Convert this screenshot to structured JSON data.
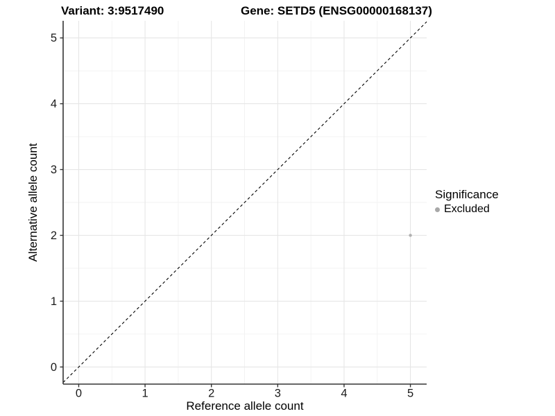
{
  "chart_data": {
    "type": "scatter",
    "title_left": "Variant: 3:9517490",
    "title_right": "Gene: SETD5 (ENSG00000168137)",
    "xlabel": "Reference allele count",
    "ylabel": "Alternative allele count",
    "x_ticks": [
      0,
      1,
      2,
      3,
      4,
      5
    ],
    "y_ticks": [
      0,
      1,
      2,
      3,
      4,
      5
    ],
    "xlim": [
      -0.235,
      5.245
    ],
    "ylim": [
      -0.26,
      5.26
    ],
    "grid": {
      "major": true,
      "minor": true,
      "major_color": "#e6e6e6",
      "minor_color": "#f2f2f2"
    },
    "points": [
      {
        "x": 5,
        "y": 2,
        "series": "Excluded"
      }
    ],
    "series_colors": {
      "Excluded": "#b0b0b0"
    },
    "reference_line": {
      "slope": 1,
      "intercept": 0,
      "style": "dashed",
      "color": "#000000"
    },
    "legend": {
      "title": "Significance",
      "position": "right",
      "items": [
        {
          "label": "Excluded",
          "color": "#a8a8a8"
        }
      ]
    },
    "style": {
      "axis_line_color": "#333333",
      "tick_color": "#333333",
      "tick_label_color": "#1a1a1a",
      "background": "#ffffff"
    }
  }
}
